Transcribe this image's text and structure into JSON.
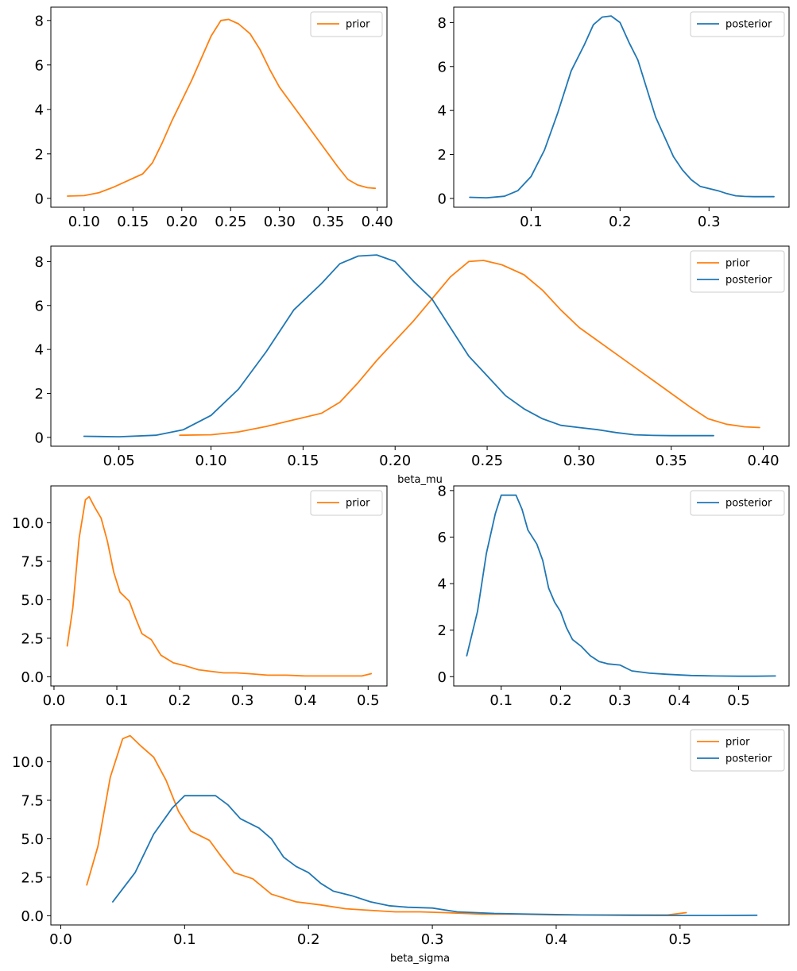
{
  "colors": {
    "prior": "#ff7f0e",
    "posterior": "#1f77b4"
  },
  "chart_data": [
    {
      "id": "beta_mu_prior",
      "type": "line",
      "xlabel": "",
      "xlim": [
        0.066,
        0.41
      ],
      "ylim": [
        -0.4,
        8.6
      ],
      "xticks": [
        0.1,
        0.15,
        0.2,
        0.25,
        0.3,
        0.35,
        0.4
      ],
      "xtick_labels": [
        "0.10",
        "0.15",
        "0.20",
        "0.25",
        "0.30",
        "0.35",
        "0.40"
      ],
      "yticks": [
        0,
        2,
        4,
        6,
        8
      ],
      "ytick_labels": [
        "0",
        "2",
        "4",
        "6",
        "8"
      ],
      "legend": "top-right",
      "series": [
        {
          "name": "prior",
          "color": "#ff7f0e",
          "x": [
            0.083,
            0.1,
            0.115,
            0.13,
            0.145,
            0.16,
            0.17,
            0.18,
            0.19,
            0.2,
            0.21,
            0.22,
            0.23,
            0.24,
            0.248,
            0.258,
            0.27,
            0.28,
            0.29,
            0.3,
            0.31,
            0.32,
            0.33,
            0.34,
            0.35,
            0.36,
            0.37,
            0.38,
            0.39,
            0.398
          ],
          "y": [
            0.1,
            0.12,
            0.25,
            0.5,
            0.8,
            1.1,
            1.6,
            2.5,
            3.5,
            4.4,
            5.3,
            6.3,
            7.3,
            8.0,
            8.05,
            7.85,
            7.4,
            6.7,
            5.8,
            5.0,
            4.4,
            3.8,
            3.2,
            2.6,
            2.0,
            1.4,
            0.85,
            0.6,
            0.48,
            0.45
          ]
        }
      ]
    },
    {
      "id": "beta_mu_posterior",
      "type": "line",
      "xlabel": "",
      "xlim": [
        0.013,
        0.39
      ],
      "ylim": [
        -0.4,
        8.7
      ],
      "xticks": [
        0.1,
        0.2,
        0.3
      ],
      "xtick_labels": [
        "0.1",
        "0.2",
        "0.3"
      ],
      "yticks": [
        0,
        2,
        4,
        6,
        8
      ],
      "ytick_labels": [
        "0",
        "2",
        "4",
        "6",
        "8"
      ],
      "legend": "top-right",
      "series": [
        {
          "name": "posterior",
          "color": "#1f77b4",
          "x": [
            0.031,
            0.05,
            0.07,
            0.085,
            0.1,
            0.115,
            0.13,
            0.145,
            0.16,
            0.17,
            0.18,
            0.19,
            0.2,
            0.21,
            0.22,
            0.23,
            0.24,
            0.25,
            0.26,
            0.27,
            0.28,
            0.29,
            0.3,
            0.31,
            0.32,
            0.33,
            0.34,
            0.35,
            0.36,
            0.373
          ],
          "y": [
            0.05,
            0.03,
            0.1,
            0.35,
            1.0,
            2.2,
            3.9,
            5.8,
            7.0,
            7.9,
            8.25,
            8.3,
            8.0,
            7.1,
            6.3,
            5.0,
            3.7,
            2.8,
            1.9,
            1.3,
            0.85,
            0.55,
            0.45,
            0.35,
            0.22,
            0.12,
            0.09,
            0.08,
            0.08,
            0.08
          ]
        }
      ]
    },
    {
      "id": "beta_mu_combined",
      "type": "line",
      "xlabel": "beta_mu",
      "xlim": [
        0.013,
        0.414
      ],
      "ylim": [
        -0.4,
        8.7
      ],
      "xticks": [
        0.05,
        0.1,
        0.15,
        0.2,
        0.25,
        0.3,
        0.35,
        0.4
      ],
      "xtick_labels": [
        "0.05",
        "0.10",
        "0.15",
        "0.20",
        "0.25",
        "0.30",
        "0.35",
        "0.40"
      ],
      "yticks": [
        0,
        2,
        4,
        6,
        8
      ],
      "ytick_labels": [
        "0",
        "2",
        "4",
        "6",
        "8"
      ],
      "legend": "top-right",
      "series": [
        {
          "name": "prior",
          "color": "#ff7f0e",
          "x": [
            0.083,
            0.1,
            0.115,
            0.13,
            0.145,
            0.16,
            0.17,
            0.18,
            0.19,
            0.2,
            0.21,
            0.22,
            0.23,
            0.24,
            0.248,
            0.258,
            0.27,
            0.28,
            0.29,
            0.3,
            0.31,
            0.32,
            0.33,
            0.34,
            0.35,
            0.36,
            0.37,
            0.38,
            0.39,
            0.398
          ],
          "y": [
            0.1,
            0.12,
            0.25,
            0.5,
            0.8,
            1.1,
            1.6,
            2.5,
            3.5,
            4.4,
            5.3,
            6.3,
            7.3,
            8.0,
            8.05,
            7.85,
            7.4,
            6.7,
            5.8,
            5.0,
            4.4,
            3.8,
            3.2,
            2.6,
            2.0,
            1.4,
            0.85,
            0.6,
            0.48,
            0.45
          ]
        },
        {
          "name": "posterior",
          "color": "#1f77b4",
          "x": [
            0.031,
            0.05,
            0.07,
            0.085,
            0.1,
            0.115,
            0.13,
            0.145,
            0.16,
            0.17,
            0.18,
            0.19,
            0.2,
            0.21,
            0.22,
            0.23,
            0.24,
            0.25,
            0.26,
            0.27,
            0.28,
            0.29,
            0.3,
            0.31,
            0.32,
            0.33,
            0.34,
            0.35,
            0.36,
            0.373
          ],
          "y": [
            0.05,
            0.03,
            0.1,
            0.35,
            1.0,
            2.2,
            3.9,
            5.8,
            7.0,
            7.9,
            8.25,
            8.3,
            8.0,
            7.1,
            6.3,
            5.0,
            3.7,
            2.8,
            1.9,
            1.3,
            0.85,
            0.55,
            0.45,
            0.35,
            0.22,
            0.12,
            0.09,
            0.08,
            0.08,
            0.08
          ]
        }
      ]
    },
    {
      "id": "beta_sigma_prior",
      "type": "line",
      "xlabel": "",
      "xlim": [
        -0.005,
        0.53
      ],
      "ylim": [
        -0.6,
        12.4
      ],
      "xticks": [
        0.0,
        0.1,
        0.2,
        0.3,
        0.4,
        0.5
      ],
      "xtick_labels": [
        "0.0",
        "0.1",
        "0.2",
        "0.3",
        "0.4",
        "0.5"
      ],
      "yticks": [
        0,
        2.5,
        5,
        7.5,
        10
      ],
      "ytick_labels": [
        "0.0",
        "2.5",
        "5.0",
        "7.5",
        "10.0"
      ],
      "legend": "top-right",
      "series": [
        {
          "name": "prior",
          "color": "#ff7f0e",
          "x": [
            0.021,
            0.03,
            0.04,
            0.05,
            0.056,
            0.065,
            0.075,
            0.085,
            0.095,
            0.105,
            0.12,
            0.13,
            0.14,
            0.155,
            0.17,
            0.19,
            0.21,
            0.23,
            0.25,
            0.27,
            0.29,
            0.31,
            0.34,
            0.37,
            0.4,
            0.43,
            0.46,
            0.49,
            0.505
          ],
          "y": [
            2.0,
            4.5,
            9.0,
            11.5,
            11.7,
            11.0,
            10.3,
            8.8,
            6.8,
            5.5,
            4.9,
            3.8,
            2.8,
            2.4,
            1.4,
            0.9,
            0.7,
            0.45,
            0.35,
            0.25,
            0.25,
            0.2,
            0.1,
            0.1,
            0.05,
            0.05,
            0.05,
            0.05,
            0.2
          ]
        }
      ]
    },
    {
      "id": "beta_sigma_posterior",
      "type": "line",
      "xlabel": "",
      "xlim": [
        0.02,
        0.585
      ],
      "ylim": [
        -0.4,
        8.2
      ],
      "xticks": [
        0.1,
        0.2,
        0.3,
        0.4,
        0.5
      ],
      "xtick_labels": [
        "0.1",
        "0.2",
        "0.3",
        "0.4",
        "0.5"
      ],
      "yticks": [
        0,
        2,
        4,
        6,
        8
      ],
      "ytick_labels": [
        "0",
        "2",
        "4",
        "6",
        "8"
      ],
      "legend": "top-right",
      "series": [
        {
          "name": "posterior",
          "color": "#1f77b4",
          "x": [
            0.042,
            0.06,
            0.075,
            0.09,
            0.1,
            0.11,
            0.125,
            0.135,
            0.145,
            0.16,
            0.17,
            0.18,
            0.19,
            0.2,
            0.21,
            0.22,
            0.235,
            0.25,
            0.265,
            0.28,
            0.3,
            0.32,
            0.35,
            0.38,
            0.42,
            0.46,
            0.5,
            0.53,
            0.562
          ],
          "y": [
            0.9,
            2.8,
            5.3,
            7.0,
            7.8,
            7.8,
            7.8,
            7.2,
            6.3,
            5.7,
            5.0,
            3.8,
            3.2,
            2.8,
            2.1,
            1.6,
            1.3,
            0.9,
            0.65,
            0.55,
            0.5,
            0.25,
            0.15,
            0.1,
            0.05,
            0.03,
            0.02,
            0.02,
            0.03
          ]
        }
      ]
    },
    {
      "id": "beta_sigma_combined",
      "type": "line",
      "xlabel": "beta_sigma",
      "xlim": [
        -0.008,
        0.588
      ],
      "ylim": [
        -0.6,
        12.4
      ],
      "xticks": [
        0.0,
        0.1,
        0.2,
        0.3,
        0.4,
        0.5
      ],
      "xtick_labels": [
        "0.0",
        "0.1",
        "0.2",
        "0.3",
        "0.4",
        "0.5"
      ],
      "yticks": [
        0,
        2.5,
        5,
        7.5,
        10
      ],
      "ytick_labels": [
        "0.0",
        "2.5",
        "5.0",
        "7.5",
        "10.0"
      ],
      "legend": "top-right",
      "series": [
        {
          "name": "prior",
          "color": "#ff7f0e",
          "x": [
            0.021,
            0.03,
            0.04,
            0.05,
            0.056,
            0.065,
            0.075,
            0.085,
            0.095,
            0.105,
            0.12,
            0.13,
            0.14,
            0.155,
            0.17,
            0.19,
            0.21,
            0.23,
            0.25,
            0.27,
            0.29,
            0.31,
            0.34,
            0.37,
            0.4,
            0.43,
            0.46,
            0.49,
            0.505
          ],
          "y": [
            2.0,
            4.5,
            9.0,
            11.5,
            11.7,
            11.0,
            10.3,
            8.8,
            6.8,
            5.5,
            4.9,
            3.8,
            2.8,
            2.4,
            1.4,
            0.9,
            0.7,
            0.45,
            0.35,
            0.25,
            0.25,
            0.2,
            0.1,
            0.1,
            0.05,
            0.05,
            0.05,
            0.05,
            0.2
          ]
        },
        {
          "name": "posterior",
          "color": "#1f77b4",
          "x": [
            0.042,
            0.06,
            0.075,
            0.09,
            0.1,
            0.11,
            0.125,
            0.135,
            0.145,
            0.16,
            0.17,
            0.18,
            0.19,
            0.2,
            0.21,
            0.22,
            0.235,
            0.25,
            0.265,
            0.28,
            0.3,
            0.32,
            0.35,
            0.38,
            0.42,
            0.46,
            0.5,
            0.53,
            0.562
          ],
          "y": [
            0.9,
            2.8,
            5.3,
            7.0,
            7.8,
            7.8,
            7.8,
            7.2,
            6.3,
            5.7,
            5.0,
            3.8,
            3.2,
            2.8,
            2.1,
            1.6,
            1.3,
            0.9,
            0.65,
            0.55,
            0.5,
            0.25,
            0.15,
            0.1,
            0.05,
            0.03,
            0.02,
            0.02,
            0.03
          ]
        }
      ]
    }
  ]
}
